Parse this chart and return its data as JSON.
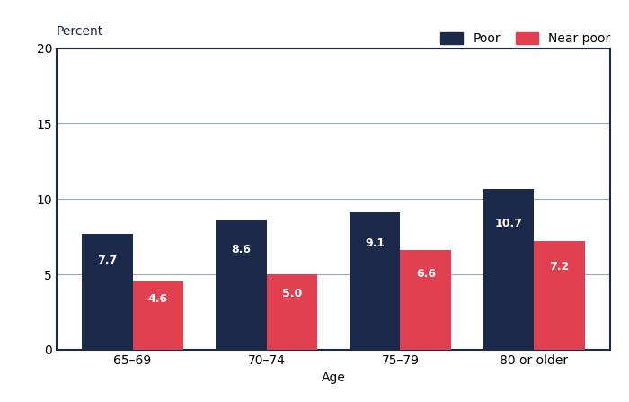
{
  "categories": [
    "65–69",
    "70–74",
    "75–79",
    "80 or older"
  ],
  "poor_values": [
    7.7,
    8.6,
    9.1,
    10.7
  ],
  "near_poor_values": [
    4.6,
    5.0,
    6.6,
    7.2
  ],
  "poor_color": "#1b2a4a",
  "near_poor_color": "#e04050",
  "bar_width": 0.38,
  "xlabel": "Age",
  "percent_label": "Percent",
  "ylim": [
    0,
    20
  ],
  "yticks": [
    0,
    5,
    10,
    15,
    20
  ],
  "legend_labels": [
    "Poor",
    "Near poor"
  ],
  "label_color": "#ffffff",
  "label_fontsize": 9,
  "axis_label_fontsize": 10,
  "tick_fontsize": 10,
  "background_color": "#ffffff",
  "grid_color": "#9aa8bc",
  "spine_color": "#1b2a4a"
}
